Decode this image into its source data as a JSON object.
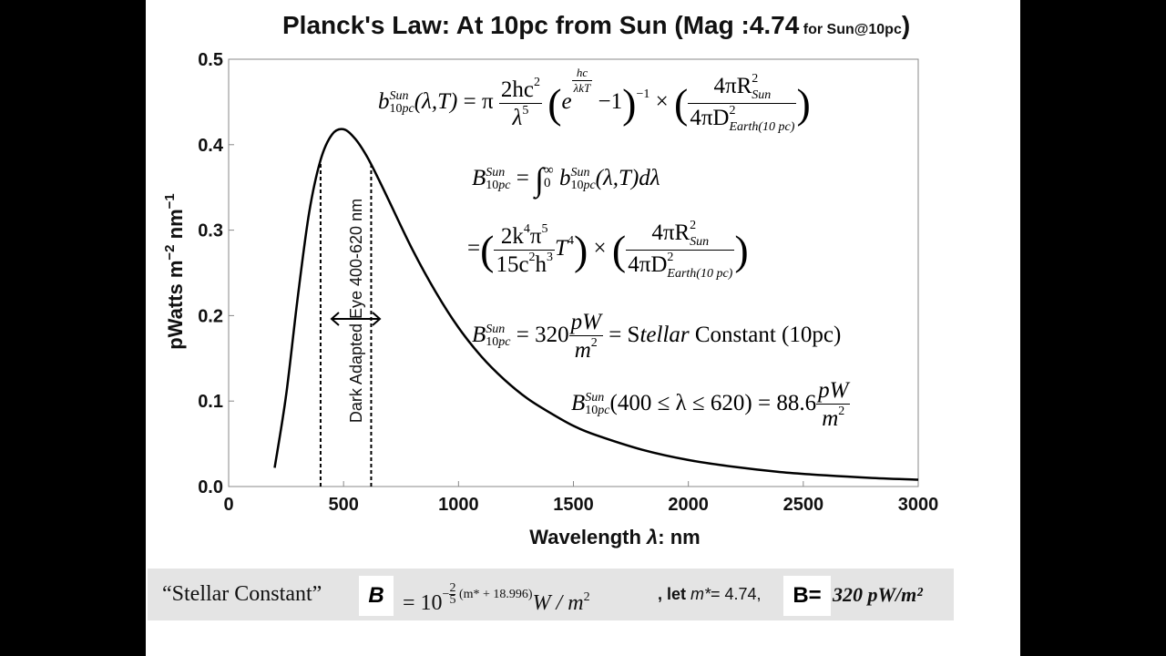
{
  "slide": {
    "title_main": "Planck's Law: At 10pc from Sun (Mag :",
    "title_mag": "4.74",
    "title_small": " for Sun@10pc",
    "title_close": ")"
  },
  "chart_data": {
    "type": "line",
    "x_label_prefix": "Wavelength ",
    "x_label_symbol": "λ",
    "x_label_suffix": ": nm",
    "y_label": "pWatts m",
    "y_label_exp1": "−2",
    "y_label_mid": " nm",
    "y_label_exp2": "−1",
    "xlim": [
      0,
      3000
    ],
    "ylim": [
      0,
      0.5
    ],
    "x_ticks": [
      "0",
      "500",
      "1000",
      "1500",
      "2000",
      "2500",
      "3000"
    ],
    "y_ticks": [
      "0.0",
      "0.1",
      "0.2",
      "0.3",
      "0.4",
      "0.5"
    ],
    "series": [
      {
        "x": [
          200,
          250,
          300,
          350,
          400,
          450,
          500,
          550,
          600,
          650,
          700,
          800,
          900,
          1000,
          1100,
          1200,
          1300,
          1400,
          1500,
          1600,
          1800,
          2000,
          2200,
          2400,
          2600,
          2800,
          3000
        ],
        "y": [
          0.022,
          0.107,
          0.22,
          0.32,
          0.382,
          0.412,
          0.418,
          0.407,
          0.387,
          0.361,
          0.333,
          0.277,
          0.228,
          0.186,
          0.152,
          0.125,
          0.103,
          0.086,
          0.071,
          0.06,
          0.043,
          0.031,
          0.023,
          0.017,
          0.013,
          0.01,
          0.008
        ]
      }
    ],
    "markers": [
      400,
      620
    ],
    "band_label": "Dark Adapted Eye 400-620 nm",
    "grid": false
  },
  "equations": {
    "b_sym": "b",
    "B_sym": "B",
    "sup_sun": "Sun",
    "sub_10pc": "10",
    "sub_pc": "pc",
    "lam_T": "(λ,T)",
    "eq": "=",
    "pi": "π",
    "planck_num": "2hc",
    "sq": "2",
    "planck_den": "λ",
    "five": "5",
    "exp_e": "e",
    "exp_num": "hc",
    "exp_den": "λkT",
    "minus_one": "−1",
    "power_neg1": "−1",
    "times": "×",
    "geo_num": "4πR",
    "geo_num_sub": "Sun",
    "geo_den": "4πD",
    "geo_den_sub": "Earth(10 pc)",
    "integral": "∫",
    "int_upper": "∞",
    "int_lower": "0",
    "d_lambda": "dλ",
    "sb_num_a": "2k",
    "four": "4",
    "sb_num_b": "π",
    "sb_den_a": "15c",
    "sb_den_b": "h",
    "three": "3",
    "T4": "T",
    "val_320": "= 320",
    "pW": "pW",
    "m2": "m",
    "stellar_eq": "= S",
    "stellar_it": "tellar",
    "stellar_rest": " Constant  (10pc)",
    "range_text": "(400 ≤ λ ≤ 620) = 88.6"
  },
  "formula_bar": {
    "quote_text": "“Stellar Constant”",
    "B_label": "B",
    "eq_ten": "= 10",
    "neg": "−",
    "two": "2",
    "five": "5",
    "exp_paren": "(m* + 18.996)",
    "unit": "W / m",
    "unit_exp": "2",
    "let_text": ", let ",
    "mstar": "m*",
    "mstar_val": "= 4.74,",
    "B_eq": "B=",
    "result": "320 pW/m²"
  }
}
